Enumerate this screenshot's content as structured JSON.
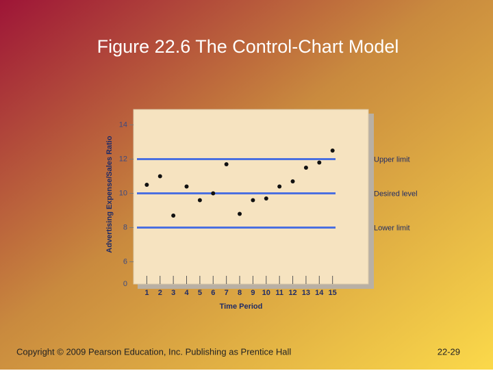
{
  "title": "Figure 22.6 The Control-Chart Model",
  "footer": {
    "copyright": "Copyright © 2009 Pearson Education, Inc.  Publishing as Prentice Hall",
    "page": "22-29"
  },
  "chart_data": {
    "type": "scatter",
    "x_label": "Time Period",
    "y_label": "Advertising Expense/Sales Ratio",
    "x": [
      1,
      2,
      3,
      4,
      5,
      6,
      7,
      8,
      9,
      10,
      11,
      12,
      13,
      14,
      15
    ],
    "series": [
      {
        "color": "#111111",
        "values": [
          10.5,
          11.0,
          8.7,
          10.4,
          9.6,
          10.0,
          11.7,
          8.8,
          9.6,
          9.7,
          10.4,
          10.7,
          11.5,
          11.8,
          12.5
        ]
      }
    ],
    "reference_lines": [
      {
        "label": "Upper limit",
        "value": 12,
        "color": "#4a6fe0"
      },
      {
        "label": "Desired level",
        "value": 10,
        "color": "#4a6fe0"
      },
      {
        "label": "Lower limit",
        "value": 8,
        "color": "#4a6fe0"
      }
    ],
    "xlim": [
      0,
      17.7
    ],
    "ylim": [
      4.7,
      14.9
    ],
    "xticks": [
      1,
      2,
      3,
      4,
      5,
      6,
      7,
      8,
      9,
      10,
      11,
      12,
      13,
      14,
      15
    ],
    "yticks": [
      6,
      8,
      10,
      12,
      14
    ],
    "axis_break_label": "0"
  }
}
